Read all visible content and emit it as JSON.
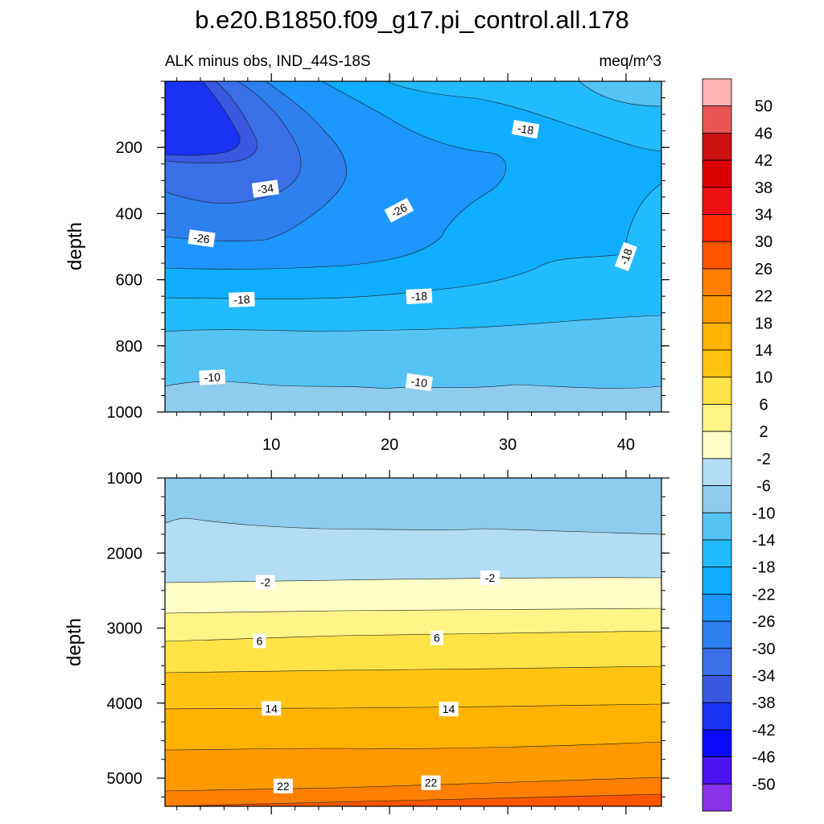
{
  "chart_data": {
    "type": "heatmap",
    "title": "b.e20.B1850.f09_g17.pi_control.all.178",
    "subtitle_left": "ALK minus obs, IND_44S-18S",
    "subtitle_right": "meq/m^3",
    "panels": [
      {
        "name": "upper",
        "ylabel": "depth",
        "ylim": [
          1000,
          0
        ],
        "xlim": [
          1,
          43
        ],
        "yticks": [
          200,
          400,
          600,
          800,
          1000
        ],
        "ytick_labels": [
          "200",
          "400",
          "600",
          "800",
          "1000"
        ],
        "xticks": [
          10,
          20,
          30,
          40
        ],
        "xtick_labels": [
          "10",
          "20",
          "30",
          "40"
        ],
        "contour_labels": [
          {
            "text": "-18",
            "x": 31.5,
            "y": 145,
            "angle": 10
          },
          {
            "text": "-34",
            "x": 9.5,
            "y": 325,
            "angle": -8
          },
          {
            "text": "-26",
            "x": 20.8,
            "y": 390,
            "angle": -28
          },
          {
            "text": "-26",
            "x": 4.1,
            "y": 475,
            "angle": 8
          },
          {
            "text": "-18",
            "x": 40,
            "y": 530,
            "angle": -70
          },
          {
            "text": "-18",
            "x": 7.5,
            "y": 660,
            "angle": -2
          },
          {
            "text": "-18",
            "x": 22.5,
            "y": 650,
            "angle": -3
          },
          {
            "text": "-10",
            "x": 5,
            "y": 895,
            "angle": -3
          },
          {
            "text": "-10",
            "x": 22.5,
            "y": 910,
            "angle": 8
          }
        ]
      },
      {
        "name": "lower",
        "ylabel": "depth",
        "ylim": [
          5375,
          1000
        ],
        "xlim": [
          1,
          43
        ],
        "yticks": [
          1000,
          2000,
          3000,
          4000,
          5000
        ],
        "ytick_labels": [
          "1000",
          "2000",
          "3000",
          "4000",
          "5000"
        ],
        "contour_labels": [
          {
            "text": "-2",
            "x": 9.5,
            "y": 2390,
            "angle": 0
          },
          {
            "text": "-2",
            "x": 28.5,
            "y": 2330,
            "angle": 0
          },
          {
            "text": "6",
            "x": 9,
            "y": 3170,
            "angle": 0
          },
          {
            "text": "6",
            "x": 24,
            "y": 3130,
            "angle": 0
          },
          {
            "text": "14",
            "x": 10,
            "y": 4070,
            "angle": 0
          },
          {
            "text": "14",
            "x": 25,
            "y": 4080,
            "angle": 0
          },
          {
            "text": "22",
            "x": 11,
            "y": 5105,
            "angle": 0
          },
          {
            "text": "22",
            "x": 23.5,
            "y": 5060,
            "angle": 0
          }
        ]
      }
    ],
    "colorbar": {
      "levels": [
        "50",
        "46",
        "42",
        "38",
        "34",
        "30",
        "26",
        "22",
        "18",
        "14",
        "10",
        "6",
        "2",
        "-2",
        "-6",
        "-10",
        "-14",
        "-18",
        "-22",
        "-26",
        "-30",
        "-34",
        "-38",
        "-42",
        "-46",
        "-50"
      ],
      "colors": [
        "#ffb2b2",
        "#e95555",
        "#cc1111",
        "#dd0000",
        "#ee1111",
        "#ff2a00",
        "#ff5500",
        "#ff7f00",
        "#ff9900",
        "#ffb200",
        "#ffc412",
        "#ffe347",
        "#fff487",
        "#ffffc8",
        "#b2ddf5",
        "#8fccee",
        "#55c4f5",
        "#22bbff",
        "#0fadff",
        "#1e96ff",
        "#2e7fee",
        "#3a6fe8",
        "#3a58e0",
        "#1a32f2",
        "#0a0aff",
        "#4a14f0",
        "#8833e8"
      ]
    }
  }
}
